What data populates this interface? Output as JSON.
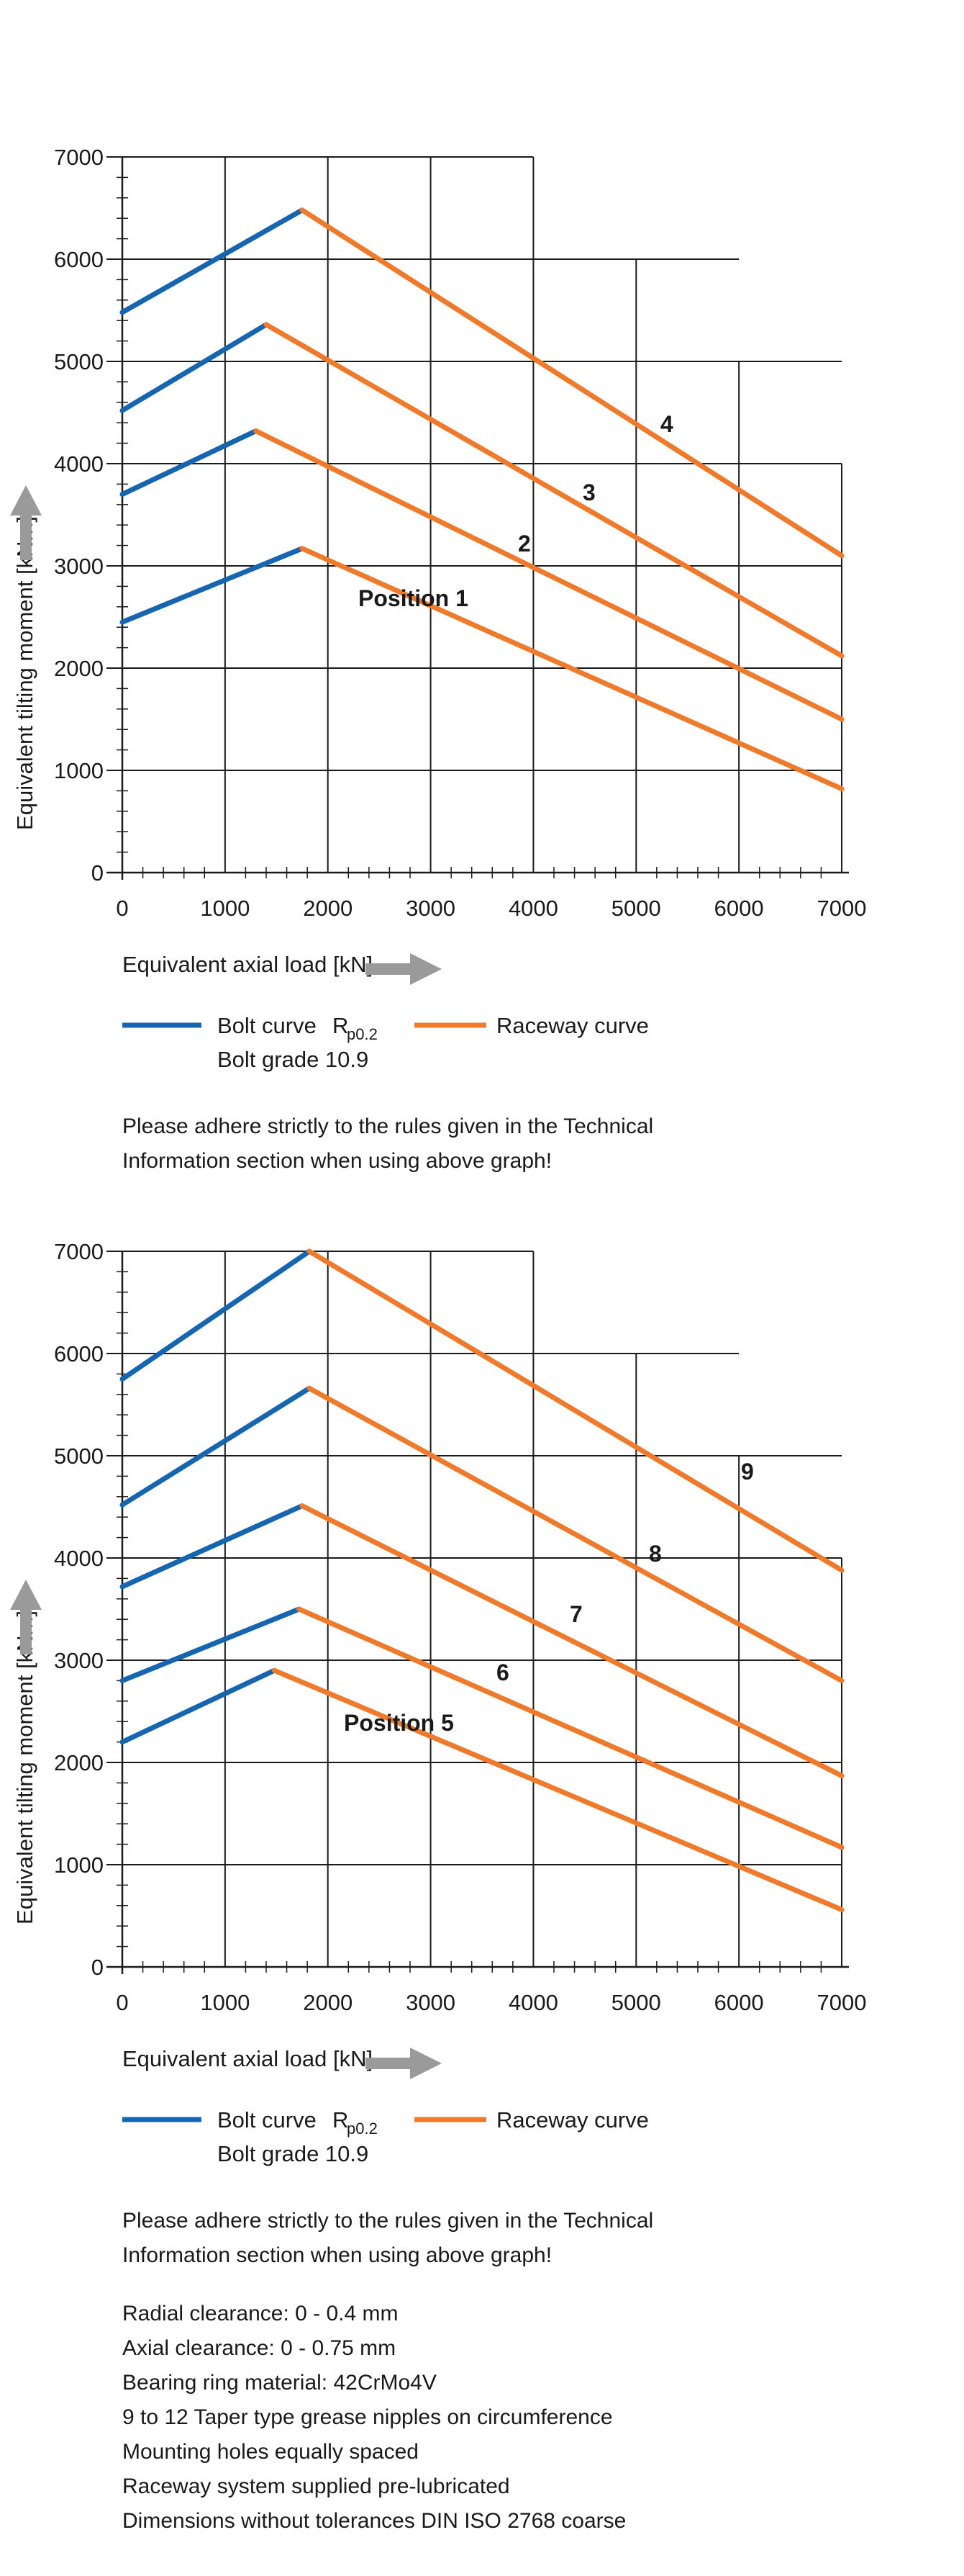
{
  "colors": {
    "bolt": "#1565b0",
    "raceway": "#f07a2b",
    "grid": "#1a1a1a",
    "arrow": "#9a9a9a"
  },
  "chart_data": [
    {
      "type": "line",
      "title": "",
      "xlabel": "Equivalent axial load [kN]",
      "ylabel": "Equivalent tilting moment [kNm]",
      "xlim": [
        0,
        7000
      ],
      "ylim": [
        0,
        7000
      ],
      "x_ticks": [
        "0",
        "1000",
        "2000",
        "3000",
        "4000",
        "5000",
        "6000",
        "7000"
      ],
      "y_ticks": [
        "0",
        "1000",
        "2000",
        "3000",
        "4000",
        "5000",
        "6000",
        "7000"
      ],
      "legend": {
        "bolt_label": "Bolt curve",
        "bolt_sub_main": "R",
        "bolt_sub_index": "p0.2",
        "bolt_grade": "Bolt grade 10.9",
        "raceway_label": "Raceway curve"
      },
      "series": [
        {
          "label": "Position 1",
          "bolt": {
            "x": [
              0,
              1750
            ],
            "y": [
              2450,
              3170
            ]
          },
          "raceway": {
            "x": [
              1750,
              7000
            ],
            "y": [
              3170,
              820
            ]
          }
        },
        {
          "label": "2",
          "bolt": {
            "x": [
              0,
              1300
            ],
            "y": [
              3700,
              4320
            ]
          },
          "raceway": {
            "x": [
              1300,
              7000
            ],
            "y": [
              4320,
              1500
            ]
          }
        },
        {
          "label": "3",
          "bolt": {
            "x": [
              0,
              1400
            ],
            "y": [
              4520,
              5360
            ]
          },
          "raceway": {
            "x": [
              1400,
              7000
            ],
            "y": [
              5360,
              2120
            ]
          }
        },
        {
          "label": "4",
          "bolt": {
            "x": [
              0,
              1750
            ],
            "y": [
              5480,
              6480
            ]
          },
          "raceway": {
            "x": [
              1750,
              7000
            ],
            "y": [
              6480,
              3100
            ]
          }
        }
      ],
      "note_lines": [
        "Please adhere strictly to the rules given in the Technical",
        "Information section when using above graph!"
      ]
    },
    {
      "type": "line",
      "title": "",
      "xlabel": "Equivalent axial load [kN]",
      "ylabel": "Equivalent tilting moment [kNm]",
      "xlim": [
        0,
        7000
      ],
      "ylim": [
        0,
        7000
      ],
      "x_ticks": [
        "0",
        "1000",
        "2000",
        "3000",
        "4000",
        "5000",
        "6000",
        "7000"
      ],
      "y_ticks": [
        "0",
        "1000",
        "2000",
        "3000",
        "4000",
        "5000",
        "6000",
        "7000"
      ],
      "legend": {
        "bolt_label": "Bolt curve",
        "bolt_sub_main": "R",
        "bolt_sub_index": "p0.2",
        "bolt_grade": "Bolt grade 10.9",
        "raceway_label": "Raceway curve"
      },
      "series": [
        {
          "label": "Position  5",
          "bolt": {
            "x": [
              0,
              1480
            ],
            "y": [
              2200,
              2900
            ]
          },
          "raceway": {
            "x": [
              1480,
              7000
            ],
            "y": [
              2900,
              560
            ]
          }
        },
        {
          "label": "6",
          "bolt": {
            "x": [
              0,
              1720
            ],
            "y": [
              2800,
              3500
            ]
          },
          "raceway": {
            "x": [
              1720,
              7000
            ],
            "y": [
              3500,
              1170
            ]
          }
        },
        {
          "label": "7",
          "bolt": {
            "x": [
              0,
              1750
            ],
            "y": [
              3720,
              4510
            ]
          },
          "raceway": {
            "x": [
              1750,
              7000
            ],
            "y": [
              4510,
              1870
            ]
          }
        },
        {
          "label": "8",
          "bolt": {
            "x": [
              0,
              1820
            ],
            "y": [
              4520,
              5660
            ]
          },
          "raceway": {
            "x": [
              1820,
              7000
            ],
            "y": [
              5660,
              2800
            ]
          }
        },
        {
          "label": "9",
          "bolt": {
            "x": [
              0,
              1820
            ],
            "y": [
              5750,
              7000
            ]
          },
          "raceway": {
            "x": [
              1820,
              7000
            ],
            "y": [
              7000,
              3880
            ]
          }
        }
      ],
      "note_lines": [
        "Please adhere strictly to the rules given in the Technical",
        "Information section when using above graph!"
      ]
    }
  ],
  "specs": {
    "lines": [
      "Radial clearance: 0 - 0.4 mm",
      "Axial clearance: 0 - 0.75  mm",
      "Bearing ring material: 42CrMo4V",
      "9 to 12 Taper type grease nipples on circumference",
      "Mounting holes equally spaced",
      "Raceway system supplied pre-lubricated",
      "Dimensions without tolerances DIN ISO 2768 coarse"
    ]
  }
}
